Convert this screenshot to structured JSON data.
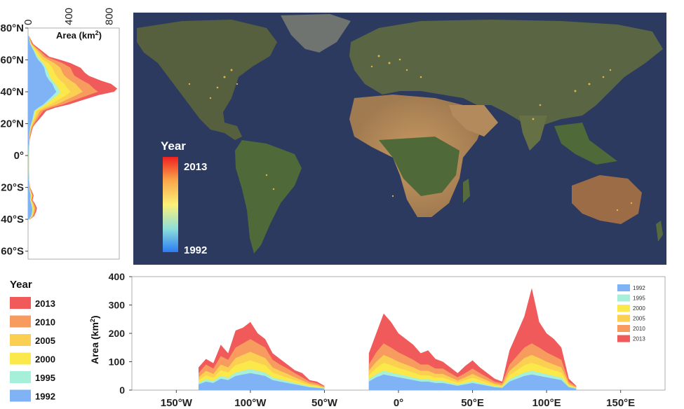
{
  "colors": {
    "y1992": "#7fb3f5",
    "y1995": "#a6efd9",
    "y2000": "#fbe84a",
    "y2005": "#fbcf52",
    "y2010": "#f79b5e",
    "y2013": "#f05a5a",
    "ocean": "#2c3e62",
    "land": "#5e6a4a"
  },
  "map": {
    "colorbar_title": "Year",
    "colorbar_max": "2013",
    "colorbar_min": "1992"
  },
  "left_chart": {
    "axis_title": "Area (km",
    "axis_title_sup": "2",
    "axis_title_end": ")",
    "x_ticks": [
      "0",
      "400",
      "800"
    ],
    "lat_labels": [
      "80°N",
      "60°N",
      "40°N",
      "20°N",
      "0°",
      "20°S",
      "40°S",
      "60°S"
    ]
  },
  "main_legend": {
    "title": "Year",
    "items": [
      "2013",
      "2010",
      "2005",
      "2000",
      "1995",
      "1992"
    ]
  },
  "bottom_chart": {
    "y_label": "Area (km",
    "y_label_sup": "2",
    "y_label_end": ")",
    "y_ticks": [
      "400",
      "300",
      "200",
      "100",
      "0"
    ],
    "x_ticks": [
      "150°W",
      "100°W",
      "50°W",
      "0°",
      "50°E",
      "100°E",
      "150°E"
    ],
    "legend": [
      "1992",
      "1995",
      "2000",
      "2005",
      "2010",
      "2013"
    ]
  },
  "chart_data": [
    {
      "type": "area",
      "orientation": "horizontal",
      "xlabel": "Area (km2)",
      "xlim": [
        0,
        900
      ],
      "ylim": [
        -65,
        80
      ],
      "y": [
        75,
        70,
        65,
        62,
        60,
        58,
        55,
        52,
        50,
        47,
        45,
        42,
        40,
        38,
        35,
        32,
        30,
        28,
        25,
        22,
        20,
        18,
        15,
        12,
        10,
        5,
        0,
        -5,
        -10,
        -15,
        -20,
        -22,
        -25,
        -28,
        -30,
        -33,
        -35,
        -38,
        -40
      ],
      "series": [
        {
          "name": "1992",
          "values": [
            5,
            20,
            60,
            80,
            100,
            130,
            160,
            170,
            180,
            210,
            240,
            260,
            280,
            250,
            200,
            150,
            100,
            60,
            50,
            40,
            30,
            20,
            15,
            10,
            8,
            5,
            3,
            3,
            3,
            5,
            10,
            15,
            25,
            20,
            30,
            40,
            40,
            30,
            10
          ]
        },
        {
          "name": "1995",
          "values": [
            5,
            25,
            70,
            95,
            120,
            150,
            180,
            200,
            210,
            240,
            270,
            300,
            320,
            290,
            230,
            170,
            120,
            70,
            60,
            45,
            35,
            25,
            18,
            12,
            9,
            6,
            4,
            4,
            4,
            6,
            12,
            18,
            30,
            24,
            35,
            45,
            45,
            34,
            12
          ]
        },
        {
          "name": "2000",
          "values": [
            6,
            30,
            90,
            120,
            150,
            200,
            240,
            260,
            280,
            320,
            360,
            390,
            420,
            380,
            300,
            220,
            150,
            90,
            75,
            55,
            42,
            30,
            20,
            14,
            10,
            7,
            5,
            5,
            5,
            7,
            14,
            22,
            36,
            28,
            42,
            55,
            52,
            40,
            14
          ]
        },
        {
          "name": "2005",
          "values": [
            7,
            35,
            110,
            150,
            200,
            260,
            320,
            340,
            360,
            420,
            470,
            510,
            540,
            480,
            380,
            280,
            190,
            120,
            95,
            70,
            52,
            37,
            25,
            17,
            12,
            8,
            6,
            6,
            6,
            8,
            16,
            26,
            42,
            33,
            50,
            65,
            60,
            46,
            16
          ]
        },
        {
          "name": "2010",
          "values": [
            8,
            40,
            130,
            180,
            260,
            340,
            420,
            440,
            460,
            540,
            600,
            650,
            690,
            600,
            470,
            340,
            230,
            150,
            115,
            85,
            62,
            44,
            30,
            20,
            14,
            9,
            7,
            7,
            7,
            9,
            18,
            30,
            48,
            38,
            58,
            76,
            70,
            54,
            18
          ]
        },
        {
          "name": "2013",
          "values": [
            10,
            50,
            150,
            210,
            320,
            420,
            520,
            560,
            600,
            720,
            820,
            880,
            850,
            700,
            550,
            400,
            270,
            180,
            140,
            100,
            72,
            50,
            35,
            24,
            16,
            10,
            8,
            8,
            8,
            10,
            20,
            35,
            55,
            44,
            66,
            88,
            80,
            60,
            20
          ]
        }
      ]
    },
    {
      "type": "area",
      "ylabel": "Area (km2)",
      "ylim": [
        0,
        400
      ],
      "xlim": [
        -180,
        180
      ],
      "x": [
        -135,
        -130,
        -125,
        -120,
        -115,
        -110,
        -105,
        -100,
        -95,
        -90,
        -85,
        -80,
        -75,
        -70,
        -65,
        -60,
        -55,
        -50,
        -20,
        -15,
        -10,
        -5,
        0,
        5,
        10,
        15,
        20,
        25,
        30,
        35,
        40,
        45,
        50,
        55,
        60,
        65,
        70,
        75,
        80,
        85,
        90,
        95,
        100,
        105,
        110,
        115,
        120
      ],
      "series": [
        {
          "name": "1992",
          "values": [
            20,
            30,
            25,
            40,
            35,
            50,
            55,
            60,
            55,
            50,
            35,
            30,
            25,
            20,
            15,
            10,
            8,
            5,
            30,
            45,
            55,
            50,
            45,
            40,
            35,
            30,
            30,
            25,
            25,
            20,
            15,
            20,
            25,
            20,
            15,
            10,
            8,
            30,
            40,
            50,
            55,
            50,
            45,
            40,
            35,
            10,
            5
          ]
        },
        {
          "name": "1995",
          "values": [
            25,
            38,
            32,
            50,
            44,
            62,
            68,
            75,
            68,
            62,
            44,
            38,
            32,
            25,
            19,
            13,
            10,
            6,
            38,
            56,
            68,
            62,
            56,
            50,
            44,
            38,
            38,
            32,
            32,
            25,
            19,
            25,
            32,
            25,
            19,
            13,
            10,
            38,
            50,
            62,
            68,
            62,
            56,
            50,
            44,
            13,
            6
          ]
        },
        {
          "name": "2000",
          "values": [
            35,
            52,
            44,
            70,
            62,
            88,
            96,
            105,
            96,
            88,
            62,
            52,
            44,
            35,
            26,
            18,
            14,
            8,
            52,
            78,
            96,
            88,
            78,
            70,
            62,
            52,
            52,
            44,
            44,
            35,
            26,
            35,
            44,
            35,
            26,
            18,
            14,
            52,
            70,
            88,
            96,
            88,
            78,
            70,
            62,
            18,
            8
          ]
        },
        {
          "name": "2005",
          "values": [
            45,
            68,
            57,
            90,
            80,
            113,
            124,
            135,
            124,
            113,
            80,
            68,
            57,
            45,
            34,
            23,
            18,
            10,
            68,
            100,
            124,
            113,
            100,
            90,
            80,
            68,
            68,
            57,
            57,
            45,
            34,
            45,
            57,
            45,
            34,
            23,
            18,
            68,
            90,
            113,
            124,
            113,
            100,
            90,
            80,
            23,
            10
          ]
        },
        {
          "name": "2010",
          "values": [
            60,
            90,
            76,
            120,
            107,
            150,
            165,
            180,
            165,
            150,
            107,
            90,
            76,
            60,
            45,
            30,
            24,
            13,
            90,
            133,
            165,
            150,
            133,
            120,
            107,
            90,
            90,
            76,
            76,
            60,
            45,
            60,
            76,
            60,
            45,
            30,
            24,
            90,
            120,
            150,
            165,
            150,
            133,
            120,
            107,
            30,
            13
          ]
        },
        {
          "name": "2013",
          "values": [
            80,
            110,
            95,
            160,
            130,
            210,
            220,
            240,
            200,
            180,
            130,
            110,
            90,
            70,
            60,
            35,
            30,
            15,
            130,
            200,
            270,
            240,
            200,
            180,
            160,
            130,
            140,
            110,
            100,
            80,
            60,
            85,
            105,
            80,
            60,
            40,
            30,
            140,
            200,
            260,
            360,
            240,
            200,
            180,
            150,
            40,
            15
          ]
        }
      ]
    }
  ]
}
